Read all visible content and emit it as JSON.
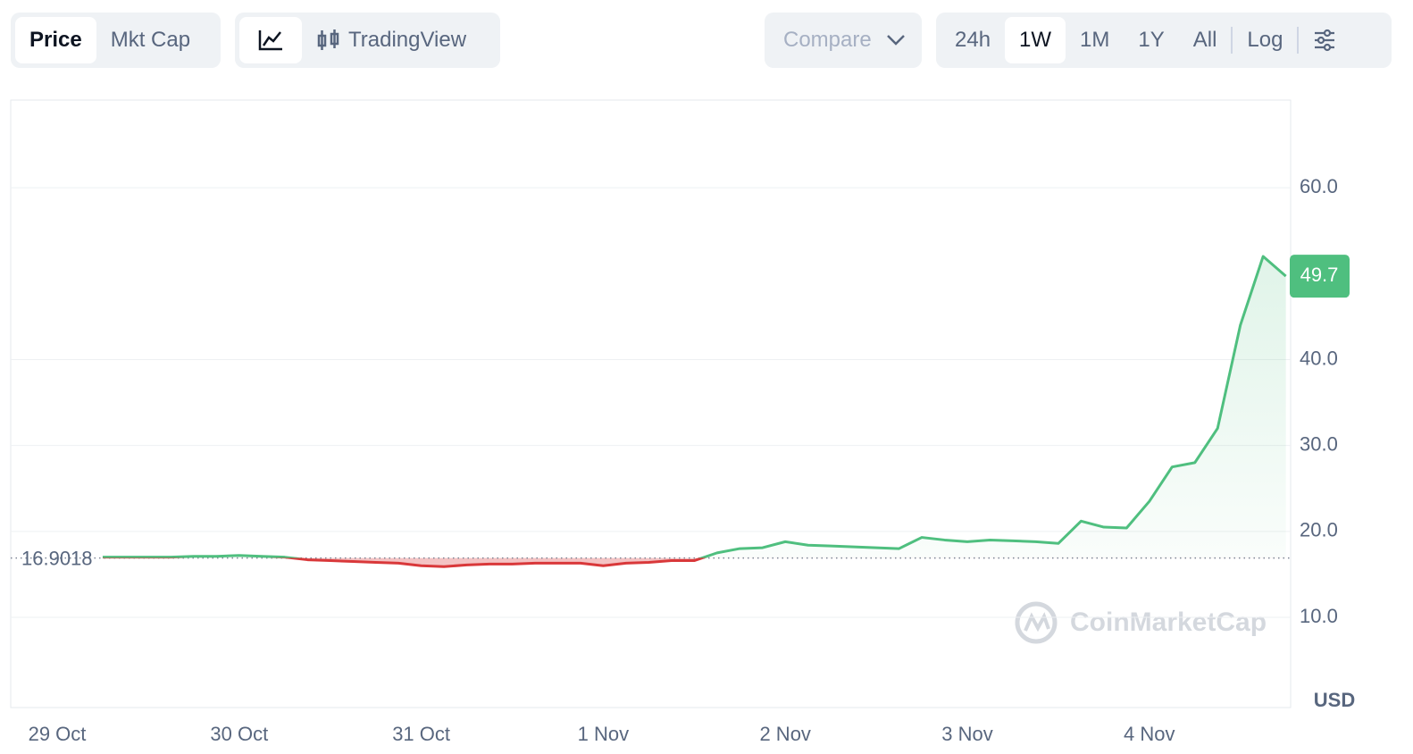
{
  "toolbar": {
    "view_tabs": [
      "Price",
      "Mkt Cap"
    ],
    "chart_tab": "TradingView",
    "compare": "Compare",
    "ranges": [
      "24h",
      "1W",
      "1M",
      "1Y",
      "All",
      "Log"
    ]
  },
  "chart_data": {
    "type": "line",
    "categories": [
      "29 Oct",
      null,
      null,
      null,
      null,
      null,
      null,
      null,
      "30 Oct",
      null,
      null,
      null,
      null,
      null,
      null,
      null,
      "31 Oct",
      null,
      null,
      null,
      null,
      null,
      null,
      null,
      "1 Nov",
      null,
      null,
      null,
      null,
      null,
      null,
      null,
      "2 Nov",
      null,
      null,
      null,
      null,
      null,
      null,
      null,
      "3 Nov",
      null,
      null,
      null,
      null,
      null,
      null,
      null,
      "4 Nov",
      null,
      null,
      null,
      null,
      null,
      null
    ],
    "values": [
      null,
      null,
      17.0,
      17.0,
      17.0,
      17.0,
      17.1,
      17.1,
      17.2,
      17.1,
      17.0,
      16.7,
      16.6,
      16.5,
      16.4,
      16.3,
      16.0,
      15.9,
      16.1,
      16.2,
      16.2,
      16.3,
      16.3,
      16.3,
      16.0,
      16.3,
      16.4,
      16.6,
      16.6,
      17.5,
      18.0,
      18.1,
      18.8,
      18.4,
      18.3,
      18.2,
      18.1,
      18.0,
      19.3,
      19.0,
      18.8,
      19.0,
      18.9,
      18.8,
      18.6,
      21.2,
      20.5,
      20.4,
      23.5,
      27.5,
      28.0,
      32.0,
      44.0,
      52.0,
      49.7
    ],
    "baseline": {
      "value": 16.9018,
      "label": "16.9018"
    },
    "last_value": 49.7,
    "colors": {
      "up": "#4fbf7f",
      "down": "#d9383a"
    },
    "ylim": [
      -0.5,
      70.2
    ],
    "yticks": [
      {
        "value": 10,
        "label": "10.0"
      },
      {
        "value": 20,
        "label": "20.0"
      },
      {
        "value": 30,
        "label": "30.0"
      },
      {
        "value": 40,
        "label": "40.0"
      },
      {
        "value": 60,
        "label": "60.0"
      }
    ],
    "grid": true,
    "y_unit": "USD",
    "watermark": "CoinMarketCap"
  }
}
